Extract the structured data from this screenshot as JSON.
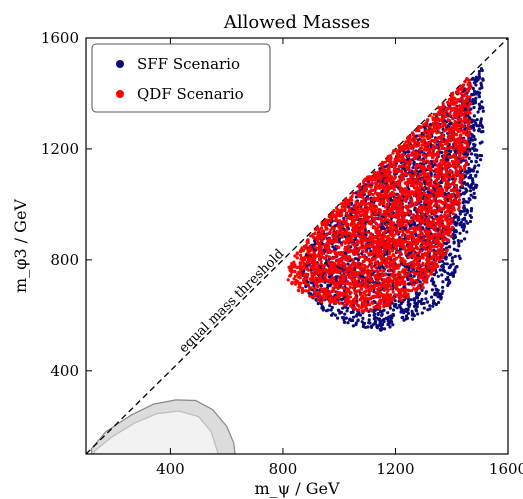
{
  "chart_data": {
    "type": "scatter",
    "title": "Allowed Masses",
    "xlabel": "m_ψ / GeV",
    "ylabel": "m_φ3 / GeV",
    "xlim": [
      100,
      1600
    ],
    "ylim": [
      100,
      1600
    ],
    "xticks": [
      400,
      800,
      1200,
      1600
    ],
    "yticks": [
      400,
      800,
      1200,
      1600
    ],
    "grid": false,
    "legend_position": "top-left",
    "annotation": "equal mass threshold",
    "series": [
      {
        "name": "SFF Scenario",
        "color": "#0a0a78",
        "region_outline": [
          [
            1050,
            560
          ],
          [
            1150,
            545
          ],
          [
            1250,
            575
          ],
          [
            1350,
            640
          ],
          [
            1420,
            760
          ],
          [
            1470,
            950
          ],
          [
            1505,
            1150
          ],
          [
            1515,
            1350
          ],
          [
            1510,
            1495
          ],
          [
            1460,
            1440
          ],
          [
            1300,
            1280
          ],
          [
            1150,
            1140
          ],
          [
            1000,
            980
          ],
          [
            900,
            870
          ],
          [
            860,
            760
          ],
          [
            890,
            680
          ],
          [
            960,
            600
          ]
        ]
      },
      {
        "name": "QDF Scenario",
        "color": "#ff0000",
        "region_outline": [
          [
            1000,
            640
          ],
          [
            1100,
            610
          ],
          [
            1200,
            640
          ],
          [
            1300,
            700
          ],
          [
            1380,
            820
          ],
          [
            1430,
            1000
          ],
          [
            1460,
            1200
          ],
          [
            1470,
            1380
          ],
          [
            1465,
            1470
          ],
          [
            1400,
            1400
          ],
          [
            1250,
            1250
          ],
          [
            1100,
            1100
          ],
          [
            950,
            950
          ],
          [
            850,
            830
          ],
          [
            805,
            740
          ],
          [
            850,
            690
          ],
          [
            930,
            650
          ]
        ]
      }
    ],
    "reference_line": {
      "type": "diagonal",
      "style": "dashed",
      "color": "#000000"
    },
    "excluded_regions": [
      {
        "fill": "#dcdcdc",
        "stroke": "#888888",
        "outline": [
          [
            120,
            120
          ],
          [
            170,
            180
          ],
          [
            260,
            240
          ],
          [
            340,
            280
          ],
          [
            420,
            295
          ],
          [
            490,
            293
          ],
          [
            550,
            260
          ],
          [
            600,
            200
          ],
          [
            625,
            140
          ],
          [
            630,
            100
          ],
          [
            120,
            100
          ]
        ]
      },
      {
        "fill": "#f2f2f2",
        "stroke": "#bbbbbb",
        "outline": [
          [
            130,
            110
          ],
          [
            190,
            160
          ],
          [
            270,
            210
          ],
          [
            350,
            245
          ],
          [
            430,
            255
          ],
          [
            500,
            235
          ],
          [
            545,
            180
          ],
          [
            570,
            100
          ],
          [
            130,
            100
          ]
        ]
      }
    ]
  }
}
